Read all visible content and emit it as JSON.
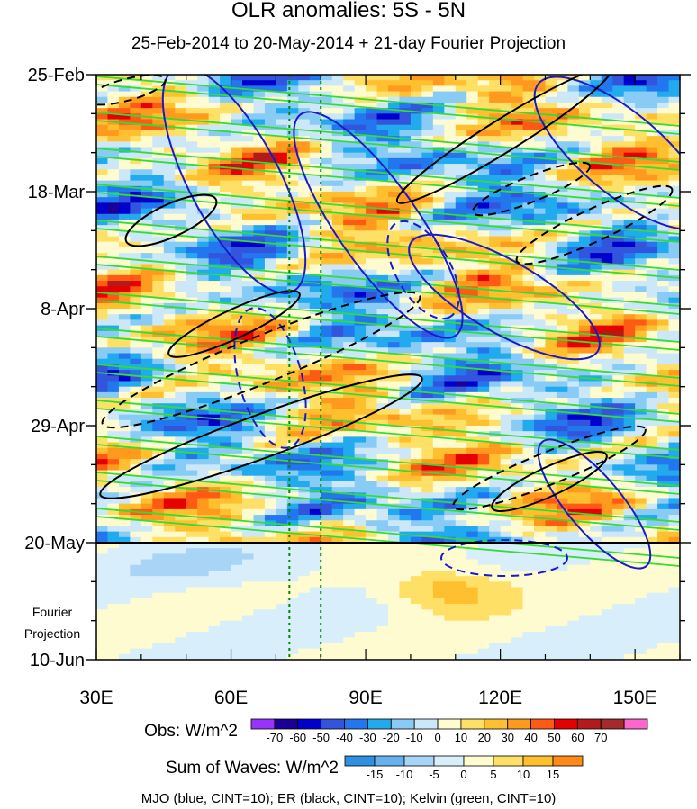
{
  "title": "OLR anomalies: 5S - 5N",
  "subtitle": "25-Feb-2014 to 20-May-2014 + 21-day Fourier Projection",
  "footer": "MJO (blue, CINT=10); ER (black, CINT=10); Kelvin (green, CINT=10)",
  "chart_data": {
    "type": "heatmap",
    "title": "OLR anomalies: 5S - 5N",
    "subtitle": "25-Feb-2014 to 20-May-2014 + 21-day Fourier Projection",
    "x_ticks": [
      {
        "value": 30,
        "label": "30E"
      },
      {
        "value": 60,
        "label": "60E"
      },
      {
        "value": 90,
        "label": "90E"
      },
      {
        "value": 120,
        "label": "120E"
      },
      {
        "value": 150,
        "label": "150E"
      }
    ],
    "xlim": [
      30,
      160
    ],
    "y_ticks": [
      {
        "label": "25-Feb",
        "day": 0
      },
      {
        "label": "18-Mar",
        "day": 21
      },
      {
        "label": "8-Apr",
        "day": 42
      },
      {
        "label": "29-Apr",
        "day": 63
      },
      {
        "label": "20-May",
        "day": 84
      },
      {
        "label": "10-Jun",
        "day": 105
      }
    ],
    "ylim": [
      "25-Feb",
      "10-Jun"
    ],
    "projection_label": "Fourier Projection",
    "projection_start": "20-May",
    "vertical_reference_lines_lon": [
      73,
      80
    ],
    "obs_colorbar": {
      "label": "Obs: W/m^2",
      "levels": [
        "-70",
        "-60",
        "-50",
        "-40",
        "-30",
        "-20",
        "-10",
        "0",
        "10",
        "20",
        "30",
        "40",
        "50",
        "60",
        "70"
      ],
      "colors": [
        "#9933ff",
        "#1a0099",
        "#0000cc",
        "#3355dd",
        "#2277ee",
        "#22aaee",
        "#88ccf5",
        "#cce8f8",
        "#fffbd0",
        "#ffe066",
        "#ffc030",
        "#ff9a1f",
        "#ff5a14",
        "#e60000",
        "#b31a1a",
        "#a52a2a",
        "#ff66cc"
      ]
    },
    "waves_colorbar": {
      "label": "Sum of Waves: W/m^2",
      "levels": [
        "-15",
        "-10",
        "-5",
        "0",
        "5",
        "10",
        "15"
      ],
      "colors": [
        "#2f8fe0",
        "#66b0ee",
        "#a8d4f5",
        "#d8eefa",
        "#fffbd0",
        "#ffe066",
        "#ffc030",
        "#ff8a1a"
      ]
    },
    "contours": [
      {
        "wave": "MJO",
        "color": "blue",
        "cint": 10
      },
      {
        "wave": "ER",
        "color": "black",
        "cint": 10
      },
      {
        "wave": "Kelvin",
        "color": "green",
        "cint": 10
      }
    ]
  }
}
